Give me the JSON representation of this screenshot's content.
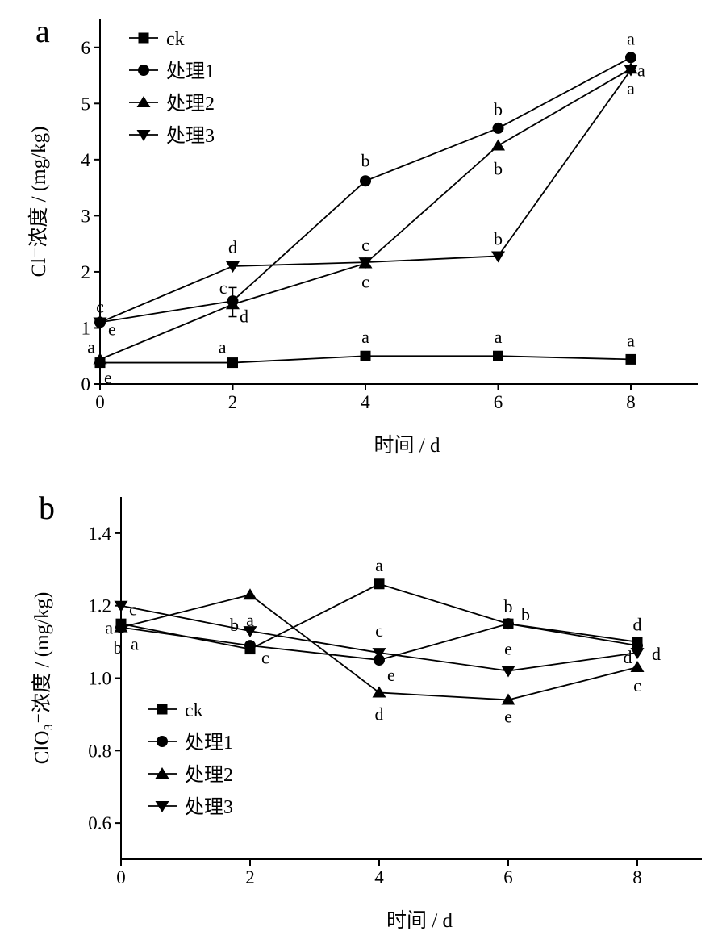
{
  "chart_data": [
    {
      "panel": "a",
      "type": "line",
      "x": [
        0,
        2,
        4,
        6,
        8
      ],
      "xlabel": "时间 / d",
      "ylabel": "Cl⁻浓度 / (mg/kg)",
      "xticks": [
        "0",
        "2",
        "4",
        "6",
        "8"
      ],
      "yticks": [
        "0",
        "1",
        "2",
        "3",
        "4",
        "5",
        "6"
      ],
      "xlim": [
        0,
        9
      ],
      "ylim": [
        0,
        6.5
      ],
      "grid": false,
      "legend_position": "top-left",
      "series": [
        {
          "name": "ck",
          "marker": "square",
          "values": [
            0.38,
            0.38,
            0.5,
            0.5,
            0.44
          ],
          "labels": [
            "e",
            "a",
            "a",
            "a",
            "a"
          ]
        },
        {
          "name": "处理1",
          "marker": "circle",
          "values": [
            1.1,
            1.48,
            3.62,
            4.56,
            5.82
          ],
          "labels": [
            "c",
            "c",
            "b",
            "b",
            "a"
          ]
        },
        {
          "name": "处理2",
          "marker": "triangle-up",
          "values": [
            0.44,
            1.42,
            2.15,
            4.25,
            5.62
          ],
          "labels": [
            "a",
            "d",
            "c",
            "b",
            "a"
          ]
        },
        {
          "name": "处理3",
          "marker": "triangle-down",
          "values": [
            1.1,
            2.1,
            2.17,
            2.28,
            5.6
          ],
          "labels": [
            "e",
            "d",
            "c",
            "b",
            "a"
          ]
        }
      ]
    },
    {
      "panel": "b",
      "type": "line",
      "x": [
        0,
        2,
        4,
        6,
        8
      ],
      "xlabel": "时间 / d",
      "ylabel": "ClO₃⁻浓度 / (mg/kg)",
      "xticks": [
        "0",
        "2",
        "4",
        "6",
        "8"
      ],
      "yticks": [
        "0.6",
        "0.8",
        "1.0",
        "1.2",
        "1.4"
      ],
      "xlim": [
        0,
        9
      ],
      "ylim": [
        0.5,
        1.5
      ],
      "grid": false,
      "legend_position": "bottom-left",
      "series": [
        {
          "name": "ck",
          "marker": "square",
          "values": [
            1.15,
            1.08,
            1.26,
            1.15,
            1.1
          ],
          "labels": [
            "b",
            "c",
            "a",
            "b",
            "d"
          ]
        },
        {
          "name": "处理1",
          "marker": "circle",
          "values": [
            1.14,
            1.09,
            1.05,
            1.15,
            1.09
          ],
          "labels": [
            "a",
            "a",
            "e",
            "b",
            "d"
          ]
        },
        {
          "name": "处理2",
          "marker": "triangle-up",
          "values": [
            1.14,
            1.23,
            0.96,
            0.94,
            1.03
          ],
          "labels": [
            "a",
            "a",
            "d",
            "e",
            "c"
          ]
        },
        {
          "name": "处理3",
          "marker": "triangle-down",
          "values": [
            1.2,
            1.13,
            1.07,
            1.02,
            1.07
          ],
          "labels": [
            "c",
            "b",
            "c",
            "e",
            "d"
          ]
        }
      ]
    }
  ]
}
